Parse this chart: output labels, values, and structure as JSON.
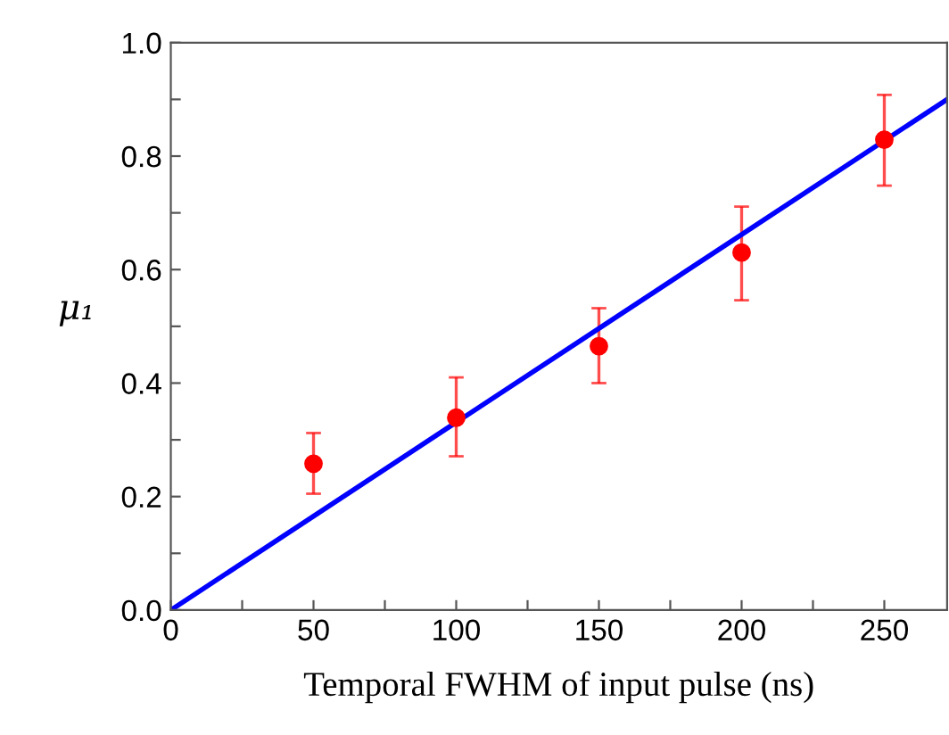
{
  "chart_data": {
    "type": "scatter",
    "xlabel": "Temporal FWHM of input pulse (ns)",
    "ylabel": "μ₁",
    "x": [
      50,
      100,
      150,
      200,
      250
    ],
    "series": [
      {
        "color": "#ff0000",
        "values": [
          0.258,
          0.339,
          0.465,
          0.63,
          0.829
        ],
        "errors": [
          [
            0.205,
            0.312
          ],
          [
            0.271,
            0.41
          ],
          [
            0.4,
            0.532
          ],
          [
            0.546,
            0.711
          ],
          [
            0.748,
            0.908
          ]
        ],
        "marker": "circle"
      },
      {
        "type": "line",
        "color": "#0000ff",
        "x": [
          0,
          272
        ],
        "values": [
          0,
          0.9
        ],
        "marker": "none",
        "line_style": "solid"
      }
    ],
    "xlim": [
      0,
      272
    ],
    "ylim": [
      0,
      1.0
    ],
    "xticks": [
      0,
      {
        "value": 25,
        "label": null
      },
      50,
      {
        "value": 75,
        "label": null
      },
      100,
      {
        "value": 125,
        "label": null
      },
      150,
      {
        "value": 175,
        "label": null
      },
      200,
      {
        "value": 225,
        "label": null
      },
      250
    ],
    "yticks": [
      {
        "value": 0,
        "label": "0.0"
      },
      {
        "value": 0.1,
        "label": null
      },
      0.2,
      {
        "value": 0.3,
        "label": null
      },
      0.4,
      {
        "value": 0.5,
        "label": null
      },
      0.6,
      {
        "value": 0.7,
        "label": null
      },
      0.8,
      {
        "value": 0.9,
        "label": null
      },
      {
        "value": 1,
        "label": "1.0"
      }
    ],
    "grid": false,
    "legend": false
  }
}
